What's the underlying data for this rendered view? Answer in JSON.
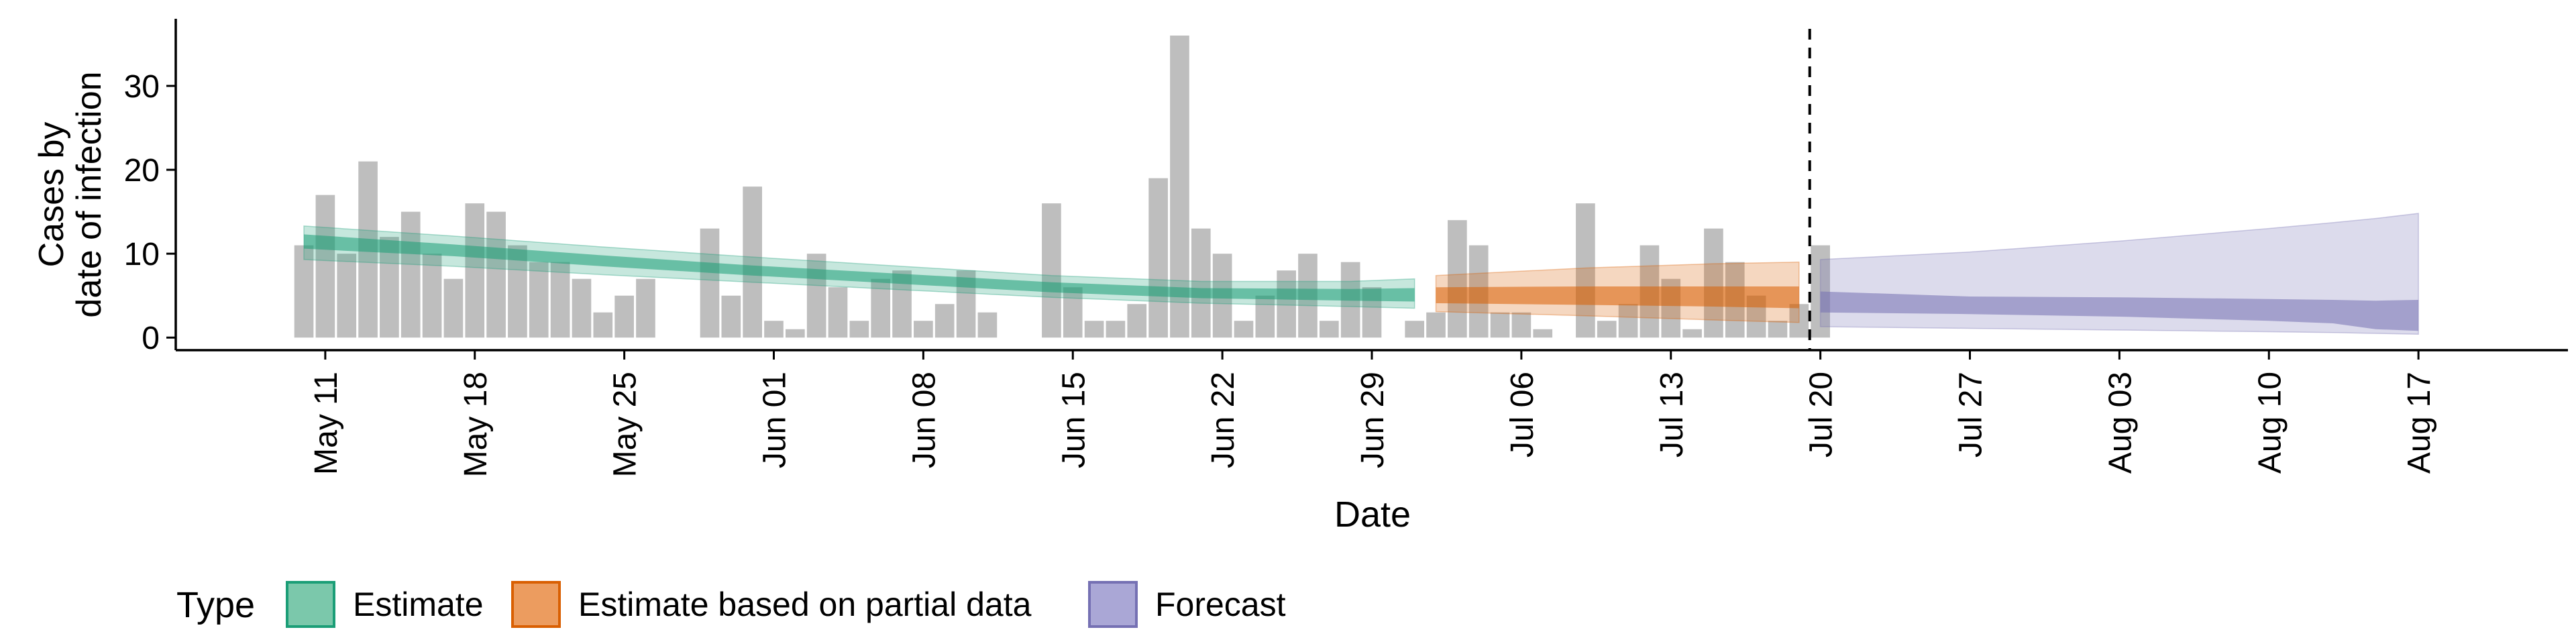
{
  "chart_data": {
    "type": "bar",
    "title": "",
    "xlabel": "Date",
    "ylabel_lines": [
      "Cases by",
      "date of infection"
    ],
    "ylim": [
      -1.5,
      38
    ],
    "yticks": [
      0,
      10,
      20,
      30
    ],
    "date_range": [
      "2020-05-04",
      "2020-08-24"
    ],
    "xticks": [
      {
        "date": "2020-05-11",
        "label": "May 11"
      },
      {
        "date": "2020-05-18",
        "label": "May 18"
      },
      {
        "date": "2020-05-25",
        "label": "May 25"
      },
      {
        "date": "2020-06-01",
        "label": "Jun 01"
      },
      {
        "date": "2020-06-08",
        "label": "Jun 08"
      },
      {
        "date": "2020-06-15",
        "label": "Jun 15"
      },
      {
        "date": "2020-06-22",
        "label": "Jun 22"
      },
      {
        "date": "2020-06-29",
        "label": "Jun 29"
      },
      {
        "date": "2020-07-06",
        "label": "Jul 06"
      },
      {
        "date": "2020-07-13",
        "label": "Jul 13"
      },
      {
        "date": "2020-07-20",
        "label": "Jul 20"
      },
      {
        "date": "2020-07-27",
        "label": "Jul 27"
      },
      {
        "date": "2020-08-03",
        "label": "Aug 03"
      },
      {
        "date": "2020-08-10",
        "label": "Aug 10"
      },
      {
        "date": "2020-08-17",
        "label": "Aug 17"
      }
    ],
    "cases": {
      "start_date": "2020-05-10",
      "values": [
        11,
        17,
        10,
        21,
        12,
        15,
        10,
        7,
        16,
        15,
        11,
        9,
        9,
        7,
        3,
        5,
        7,
        0,
        0,
        13,
        5,
        18,
        2,
        1,
        10,
        6,
        2,
        7,
        8,
        2,
        4,
        8,
        3,
        0,
        0,
        16,
        6,
        2,
        2,
        4,
        19,
        36,
        13,
        10,
        2,
        5,
        8,
        10,
        2,
        9,
        6,
        0,
        2,
        3,
        14,
        11,
        3,
        3,
        1,
        0,
        16,
        2,
        4,
        11,
        7,
        1,
        13,
        9,
        5,
        2,
        4,
        11
      ]
    },
    "forecast_divider_date": "2020-07-19",
    "series": [
      {
        "name": "Estimate",
        "color": "#1b9e77",
        "points": [
          {
            "date": "2020-05-10",
            "median": 11.5,
            "lower50": 10.6,
            "upper50": 12.3,
            "lower90": 9.3,
            "upper90": 13.3
          },
          {
            "date": "2020-05-17",
            "median": 10.4,
            "lower50": 9.7,
            "upper50": 11.1,
            "lower90": 8.5,
            "upper90": 12.1
          },
          {
            "date": "2020-05-24",
            "median": 9.2,
            "lower50": 8.5,
            "upper50": 9.8,
            "lower90": 7.5,
            "upper90": 10.8
          },
          {
            "date": "2020-05-31",
            "median": 8.0,
            "lower50": 7.4,
            "upper50": 8.6,
            "lower90": 6.6,
            "upper90": 9.6
          },
          {
            "date": "2020-06-07",
            "median": 7.0,
            "lower50": 6.4,
            "upper50": 7.6,
            "lower90": 5.7,
            "upper90": 8.5
          },
          {
            "date": "2020-06-14",
            "median": 6.0,
            "lower50": 5.4,
            "upper50": 6.6,
            "lower90": 4.8,
            "upper90": 7.4
          },
          {
            "date": "2020-06-21",
            "median": 5.3,
            "lower50": 4.7,
            "upper50": 5.9,
            "lower90": 4.1,
            "upper90": 6.7
          },
          {
            "date": "2020-06-28",
            "median": 5.1,
            "lower50": 4.4,
            "upper50": 5.8,
            "lower90": 3.7,
            "upper90": 6.7
          },
          {
            "date": "2020-07-01",
            "median": 5.1,
            "lower50": 4.3,
            "upper50": 5.9,
            "lower90": 3.5,
            "upper90": 7.0
          }
        ]
      },
      {
        "name": "Estimate based on partial data",
        "color": "#d95f02",
        "points": [
          {
            "date": "2020-07-02",
            "median": 5.0,
            "lower50": 4.1,
            "upper50": 6.0,
            "lower90": 3.1,
            "upper90": 7.4
          },
          {
            "date": "2020-07-09",
            "median": 5.0,
            "lower50": 3.9,
            "upper50": 6.1,
            "lower90": 2.6,
            "upper90": 8.3
          },
          {
            "date": "2020-07-15",
            "median": 4.9,
            "lower50": 3.7,
            "upper50": 6.1,
            "lower90": 2.1,
            "upper90": 8.8
          },
          {
            "date": "2020-07-19",
            "median": 4.8,
            "lower50": 3.5,
            "upper50": 6.1,
            "lower90": 1.8,
            "upper90": 9.0
          }
        ]
      },
      {
        "name": "Forecast",
        "color": "#7570b3",
        "points": [
          {
            "date": "2020-07-20",
            "median": 4.4,
            "lower50": 3.0,
            "upper50": 5.5,
            "lower90": 1.3,
            "upper90": 9.3
          },
          {
            "date": "2020-07-27",
            "median": 4.3,
            "lower50": 2.8,
            "upper50": 4.9,
            "lower90": 1.1,
            "upper90": 10.2
          },
          {
            "date": "2020-08-03",
            "median": 3.9,
            "lower50": 2.5,
            "upper50": 4.8,
            "lower90": 0.9,
            "upper90": 11.5
          },
          {
            "date": "2020-08-10",
            "median": 3.5,
            "lower50": 2.0,
            "upper50": 4.6,
            "lower90": 0.7,
            "upper90": 13.0
          },
          {
            "date": "2020-08-13",
            "median": 3.2,
            "lower50": 1.7,
            "upper50": 4.5,
            "lower90": 0.6,
            "upper90": 13.7
          },
          {
            "date": "2020-08-15",
            "median": 2.8,
            "lower50": 1.0,
            "upper50": 4.4,
            "lower90": 0.5,
            "upper90": 14.2
          },
          {
            "date": "2020-08-17",
            "median": 2.7,
            "lower50": 0.8,
            "upper50": 4.5,
            "lower90": 0.4,
            "upper90": 14.8
          }
        ]
      }
    ],
    "legend": {
      "title": "Type",
      "position": "bottom-left",
      "items": [
        {
          "label": "Estimate",
          "fill": "#7bc8ab",
          "stroke": "#1b9e77"
        },
        {
          "label": "Estimate based on partial data",
          "fill": "#ec9c5f",
          "stroke": "#d95f02"
        },
        {
          "label": "Forecast",
          "fill": "#aaa7d6",
          "stroke": "#7570b3"
        }
      ]
    },
    "colors": {
      "bars": "#bebebe",
      "axis": "#000000",
      "divider": "#000000"
    }
  }
}
